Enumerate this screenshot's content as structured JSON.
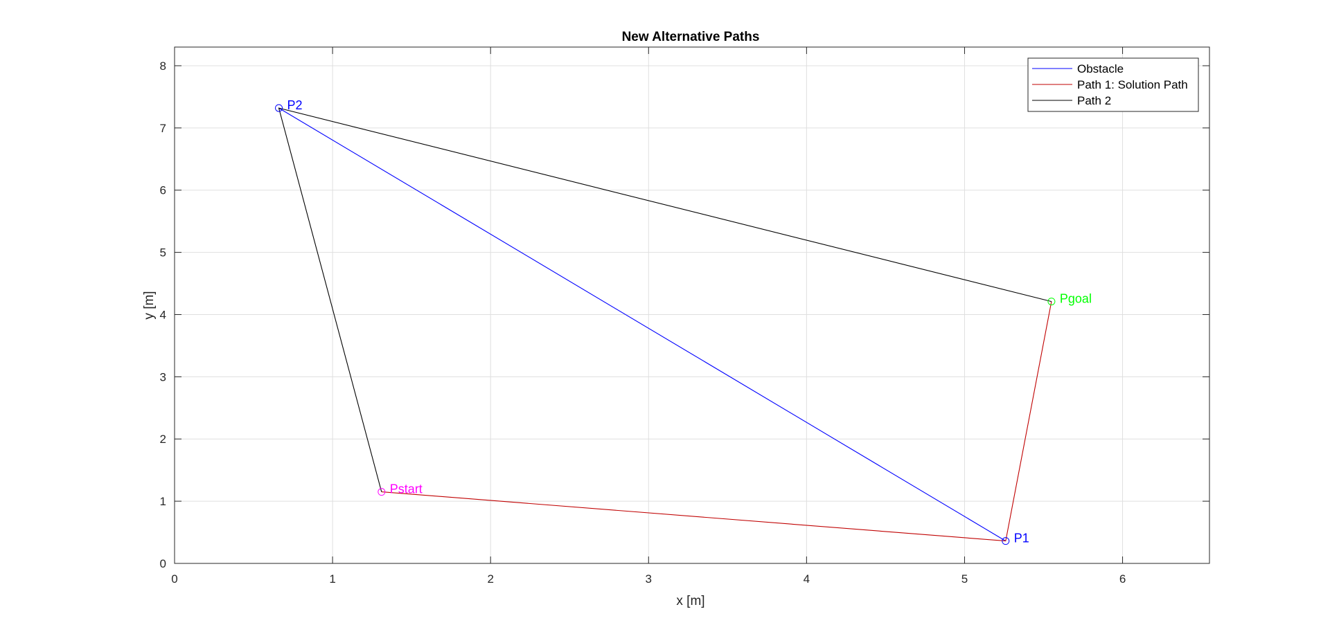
{
  "chart_data": {
    "type": "line",
    "title": "New Alternative Paths",
    "xlabel": "x [m]",
    "ylabel": "y [m]",
    "xlim": [
      0,
      6.55
    ],
    "ylim": [
      0,
      8.3
    ],
    "xticks": [
      0,
      1,
      2,
      3,
      4,
      5,
      6
    ],
    "yticks": [
      0,
      1,
      2,
      3,
      4,
      5,
      6,
      7,
      8
    ],
    "grid": true,
    "legend_position": "top-right",
    "series": [
      {
        "name": "Obstacle",
        "color": "#0000ff",
        "points": [
          [
            0.66,
            7.32
          ],
          [
            5.26,
            0.36
          ]
        ]
      },
      {
        "name": "Path 1: Solution Path",
        "color": "#c00000",
        "points": [
          [
            1.31,
            1.15
          ],
          [
            5.26,
            0.36
          ],
          [
            5.55,
            4.21
          ]
        ]
      },
      {
        "name": "Path 2",
        "color": "#000000",
        "points": [
          [
            1.31,
            1.15
          ],
          [
            0.66,
            7.32
          ],
          [
            5.55,
            4.21
          ]
        ]
      }
    ],
    "points": [
      {
        "label": "P2",
        "x": 0.66,
        "y": 7.32,
        "color": "#0000ff"
      },
      {
        "label": "Pstart",
        "x": 1.31,
        "y": 1.15,
        "color": "#ff00ff"
      },
      {
        "label": "P1",
        "x": 5.26,
        "y": 0.36,
        "color": "#0000ff"
      },
      {
        "label": "Pgoal",
        "x": 5.55,
        "y": 4.21,
        "color": "#00ff00"
      }
    ]
  }
}
